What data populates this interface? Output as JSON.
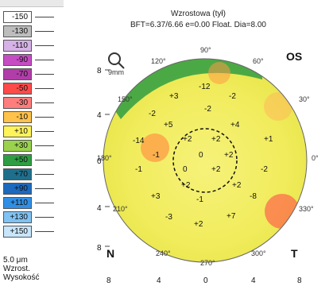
{
  "header": {
    "title": "Wzrostowa (tył)",
    "subtitle": "BFT=6.37/6.66 e=0.00 Float. Dia=8.00"
  },
  "labels": {
    "os": "OS",
    "magnifier_text": "9mm",
    "n": "N",
    "t": "T"
  },
  "scale": {
    "entries": [
      {
        "label": "-150",
        "color": "#ffffff"
      },
      {
        "label": "-130",
        "color": "#bdbdbd"
      },
      {
        "label": "-110",
        "color": "#d6b2e6"
      },
      {
        "label": "-90",
        "color": "#c64cc4"
      },
      {
        "label": "-70",
        "color": "#b13da8"
      },
      {
        "label": "-50",
        "color": "#ff4a4a"
      },
      {
        "label": "-30",
        "color": "#ff7d7d"
      },
      {
        "label": "-10",
        "color": "#ffc24a"
      },
      {
        "label": "+10",
        "color": "#fff35a"
      },
      {
        "label": "+30",
        "color": "#9ad24e"
      },
      {
        "label": "+50",
        "color": "#2f9d43"
      },
      {
        "label": "+70",
        "color": "#1f6f8c"
      },
      {
        "label": "+90",
        "color": "#1c69bd"
      },
      {
        "label": "+110",
        "color": "#2f8fe6"
      },
      {
        "label": "+130",
        "color": "#7fc2f3"
      },
      {
        "label": "+150",
        "color": "#c7e6fb"
      }
    ],
    "footer": [
      "5.0 μm",
      "Wzrost.",
      "Wysokość"
    ]
  },
  "axes": {
    "y_ticks": [
      "8",
      "4",
      "0",
      "4",
      "8"
    ],
    "x_ticks": [
      "8",
      "4",
      "0",
      "4",
      "8"
    ]
  },
  "angles": [
    "90°",
    "120°",
    "60°",
    "150°",
    "30°",
    "180°",
    "0°",
    "210°",
    "330°",
    "240°",
    "270°",
    "300°"
  ],
  "values": [
    "-12",
    "+3",
    "-2",
    "-2",
    "+5",
    "-2",
    "+4",
    "-14",
    "+2",
    "+2",
    "+1",
    "-1",
    "0",
    "+2",
    "-1",
    "0",
    "+2",
    "-2",
    "+2",
    "+2",
    "-8",
    "+3",
    "-1",
    "-3",
    "+2",
    "+7"
  ],
  "chart_data": {
    "type": "heatmap",
    "title": "Wzrostowa (tył)",
    "subtitle": "BFT=6.37/6.66 e=0.00 Float. Dia=8.00",
    "xlim": [
      -8,
      8
    ],
    "ylim": [
      -8,
      8
    ],
    "units": "μm"
  }
}
